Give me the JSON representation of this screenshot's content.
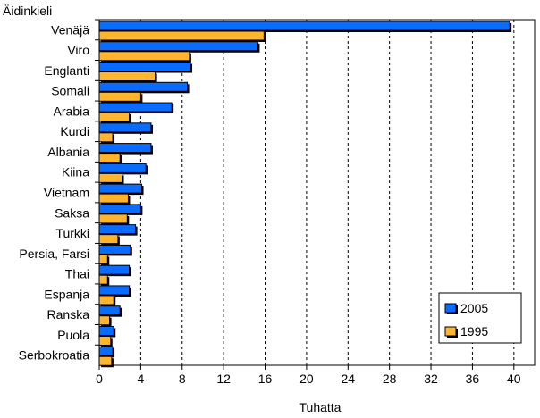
{
  "chart_data": {
    "type": "bar",
    "orientation": "horizontal",
    "y_title": "Äidinkieli",
    "x_title": "Tuhatta",
    "categories": [
      "Venäjä",
      "Viro",
      "Englanti",
      "Somali",
      "Arabia",
      "Kurdi",
      "Albania",
      "Kiina",
      "Vietnam",
      "Saksa",
      "Turkki",
      "Persia, Farsi",
      "Thai",
      "Espanja",
      "Ranska",
      "Puola",
      "Serbokroatia"
    ],
    "series": [
      {
        "name": "2005",
        "color": "#0a6cff",
        "values": [
          39.6,
          15.3,
          8.8,
          8.5,
          7.0,
          5.0,
          5.0,
          4.5,
          4.1,
          4.0,
          3.5,
          3.0,
          2.9,
          2.9,
          2.0,
          1.4,
          1.3
        ]
      },
      {
        "name": "1995",
        "color": "#ffb52e",
        "values": [
          15.9,
          8.7,
          5.4,
          4.0,
          2.9,
          1.3,
          2.0,
          2.2,
          2.8,
          2.7,
          1.8,
          0.8,
          0.8,
          1.4,
          1.0,
          1.1,
          1.2
        ]
      }
    ],
    "xlim": [
      0,
      42
    ],
    "x_ticks": [
      "0",
      "4",
      "8",
      "12",
      "16",
      "20",
      "24",
      "28",
      "32",
      "36",
      "40"
    ],
    "grid": "vertical dashed",
    "legend_placement": "bottom-right"
  }
}
